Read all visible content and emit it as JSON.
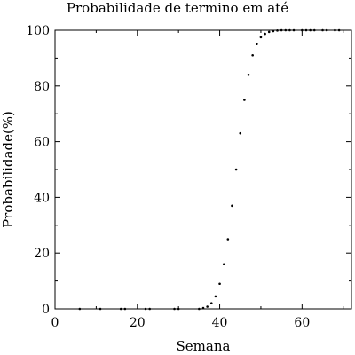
{
  "chart_data": {
    "type": "scatter",
    "title": "Probabilidade de termino em até",
    "xlabel": "Semana",
    "ylabel": "Probabilidade(%)",
    "xlim": [
      0,
      72
    ],
    "ylim": [
      0,
      100
    ],
    "xticks": [
      0,
      20,
      40,
      60
    ],
    "yticks": [
      0,
      20,
      40,
      60,
      80,
      100
    ],
    "grid": false,
    "series": [
      {
        "name": "Probabilidade",
        "x": [
          6,
          11,
          16,
          17,
          22,
          23,
          29,
          30,
          35,
          36,
          37,
          38,
          39,
          40,
          41,
          42,
          43,
          44,
          45,
          46,
          47,
          48,
          49,
          50,
          51,
          52,
          53,
          54,
          55,
          56,
          57,
          58,
          60,
          61,
          62,
          63,
          65,
          66,
          68,
          69
        ],
        "y": [
          0,
          0,
          0,
          0,
          0,
          0,
          0,
          0,
          0,
          0.3,
          0.8,
          2,
          4.5,
          9,
          16,
          25,
          37,
          50,
          63,
          75,
          84,
          91,
          95,
          97.5,
          98.7,
          99.4,
          99.7,
          99.9,
          100,
          100,
          100,
          100,
          100,
          100,
          100,
          100,
          100,
          100,
          100,
          100
        ]
      }
    ]
  }
}
